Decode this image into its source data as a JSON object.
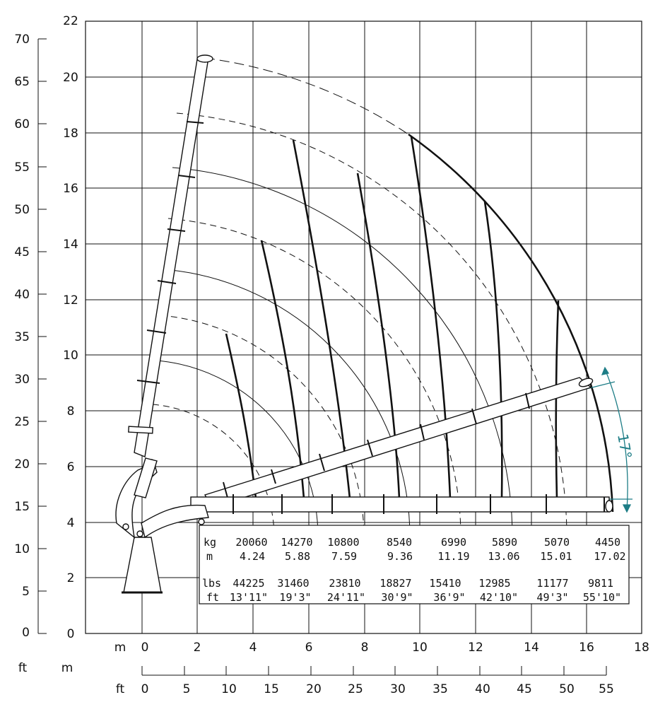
{
  "y_axis_ft": {
    "unit": "ft",
    "ticks": [
      "70",
      "65",
      "60",
      "55",
      "50",
      "45",
      "40",
      "35",
      "30",
      "25",
      "20",
      "15",
      "10",
      "5",
      "0"
    ]
  },
  "y_axis_m": {
    "ticks": [
      "22",
      "20",
      "18",
      "16",
      "14",
      "12",
      "10",
      "8",
      "6",
      "4",
      "2",
      "0"
    ]
  },
  "x_axis_m": {
    "unit": "m",
    "ticks": [
      "0",
      "2",
      "4",
      "6",
      "8",
      "10",
      "12",
      "14",
      "16",
      "18"
    ]
  },
  "x_axis_ft": {
    "unit_ft": "ft",
    "unit_m": "m",
    "ticks": [
      "0",
      "5",
      "10",
      "15",
      "20",
      "25",
      "30",
      "35",
      "40",
      "45",
      "50",
      "55"
    ]
  },
  "angle_label": "17°",
  "load_table": {
    "kg_label": "kg",
    "m_label": "m",
    "lbs_label": "lbs",
    "ft_label": "ft",
    "kg": [
      "20060",
      "14270",
      "10800",
      "8540",
      "6990",
      "5890",
      "5070",
      "4450"
    ],
    "m": [
      "4.24",
      "5.88",
      "7.59",
      "9.36",
      "11.19",
      "13.06",
      "15.01",
      "17.02"
    ],
    "lbs": [
      "44225",
      "31460",
      "23810",
      "18827",
      "15410",
      "12985",
      "11177",
      "9811"
    ],
    "ft": [
      "13'11\"",
      "19'3\"",
      "24'11\"",
      "30'9\"",
      "36'9\"",
      "42'10\"",
      "49'3\"",
      "55'10\""
    ]
  },
  "colors": {
    "line": "#111111",
    "angle": "#1d7d86"
  }
}
